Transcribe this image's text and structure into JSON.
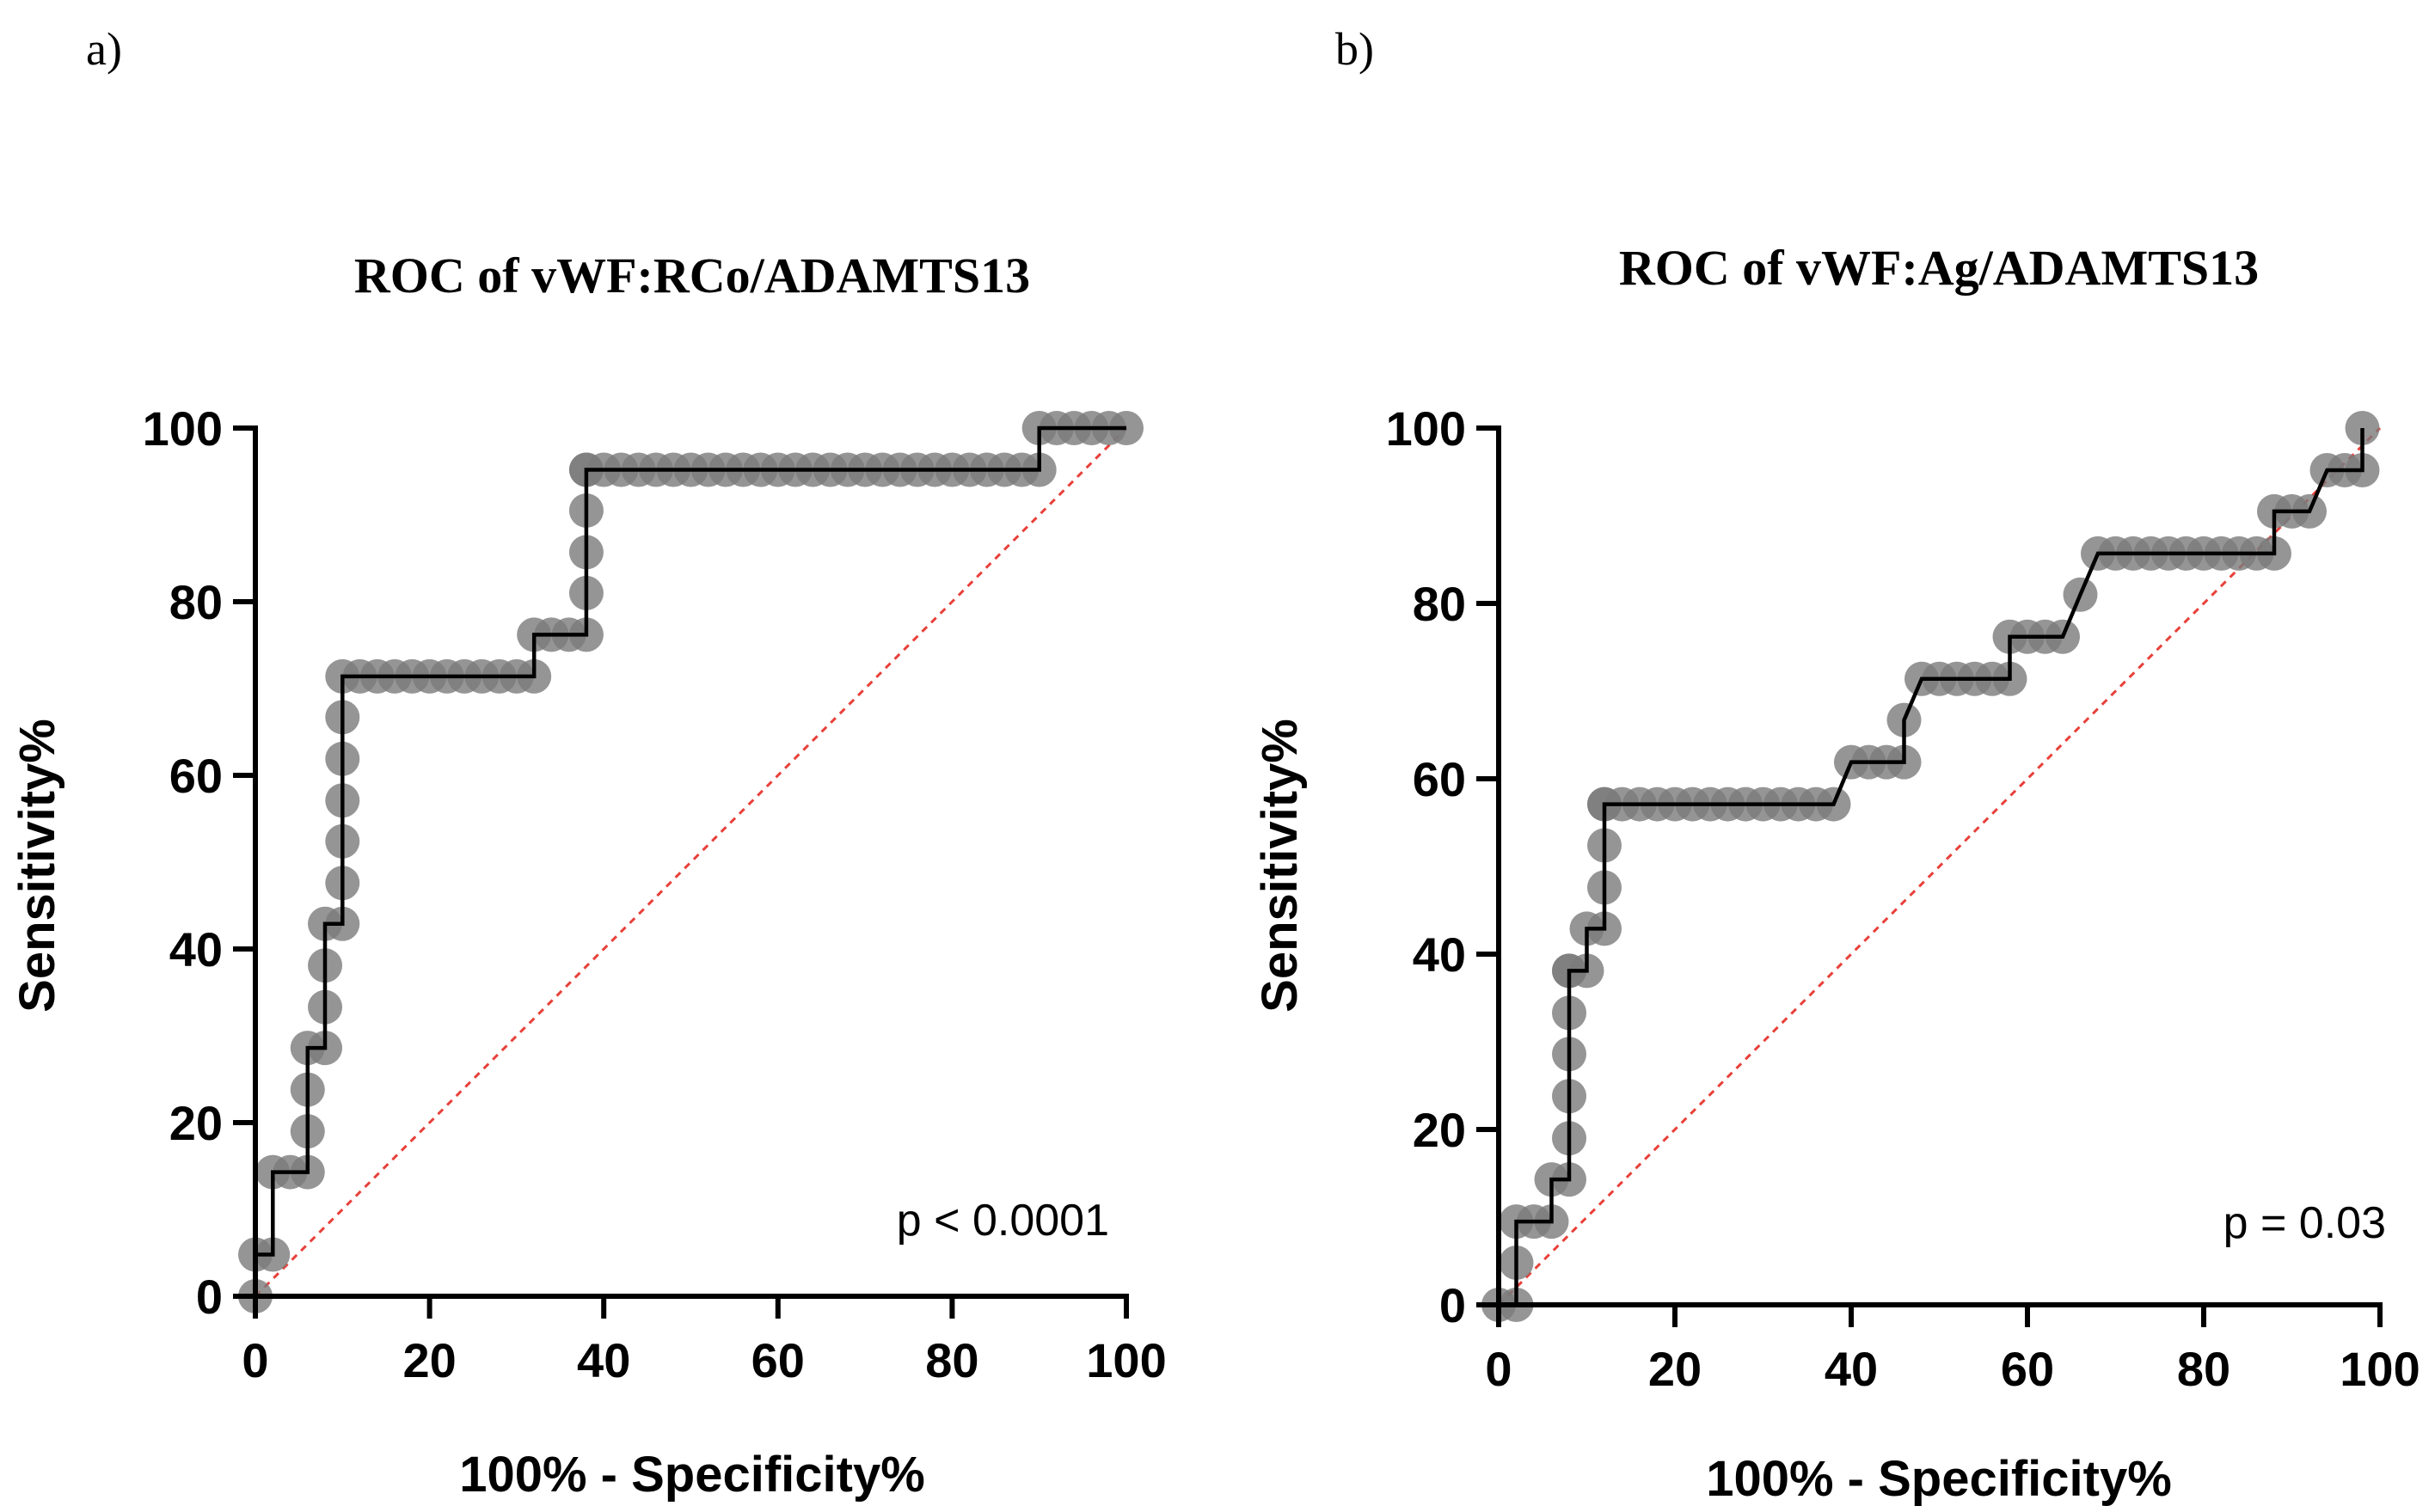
{
  "figure": {
    "panels": [
      {
        "panel_label": "a)",
        "annotation": "p < 0.0001",
        "chart_data": {
          "type": "line",
          "title": "ROC of vWF:RCo/ADAMTS13",
          "xlabel": "100% - Specificity%",
          "ylabel": "Sensitivity%",
          "xlim": [
            0,
            100
          ],
          "ylim": [
            0,
            100
          ],
          "xticks": [
            0,
            20,
            40,
            60,
            80,
            100
          ],
          "yticks": [
            0,
            20,
            40,
            60,
            80,
            100
          ],
          "colors": {
            "line": "#000000",
            "points": "#7a7a7a",
            "reference": "#e8403a"
          },
          "series": [
            {
              "name": "ROC curve",
              "x": [
                0,
                0,
                2,
                2,
                4,
                6,
                6,
                6,
                6,
                8,
                8,
                8,
                8,
                10,
                10,
                10,
                10,
                10,
                10,
                10,
                12,
                14,
                16,
                18,
                20,
                22,
                24,
                26,
                28,
                30,
                32,
                32,
                34,
                36,
                38,
                38,
                38,
                38,
                38,
                38,
                40,
                42,
                44,
                46,
                48,
                50,
                52,
                54,
                56,
                58,
                60,
                62,
                64,
                66,
                68,
                70,
                72,
                74,
                76,
                78,
                80,
                82,
                84,
                86,
                88,
                90,
                90,
                92,
                94,
                96,
                98,
                100
              ],
              "y": [
                0,
                4.8,
                4.8,
                14.3,
                14.3,
                14.3,
                19,
                23.8,
                28.6,
                28.6,
                33.3,
                38.1,
                42.9,
                42.9,
                47.6,
                52.4,
                57.1,
                61.9,
                66.7,
                71.4,
                71.4,
                71.4,
                71.4,
                71.4,
                71.4,
                71.4,
                71.4,
                71.4,
                71.4,
                71.4,
                71.4,
                76.2,
                76.2,
                76.2,
                76.2,
                81,
                85.7,
                90.5,
                95.2,
                95.2,
                95.2,
                95.2,
                95.2,
                95.2,
                95.2,
                95.2,
                95.2,
                95.2,
                95.2,
                95.2,
                95.2,
                95.2,
                95.2,
                95.2,
                95.2,
                95.2,
                95.2,
                95.2,
                95.2,
                95.2,
                95.2,
                95.2,
                95.2,
                95.2,
                95.2,
                95.2,
                100,
                100,
                100,
                100,
                100,
                100
              ]
            },
            {
              "name": "Reference line",
              "x": [
                0,
                100
              ],
              "y": [
                0,
                100
              ]
            }
          ]
        }
      },
      {
        "panel_label": "b)",
        "annotation": "p = 0.03",
        "chart_data": {
          "type": "line",
          "title": "ROC of vWF:Ag/ADAMTS13",
          "xlabel": "100% - Specificity%",
          "ylabel": "Sensitivity%",
          "xlim": [
            0,
            100
          ],
          "ylim": [
            0,
            100
          ],
          "xticks": [
            0,
            20,
            40,
            60,
            80,
            100
          ],
          "yticks": [
            0,
            20,
            40,
            60,
            80,
            100
          ],
          "colors": {
            "line": "#000000",
            "points": "#7a7a7a",
            "reference": "#e8403a"
          },
          "series": [
            {
              "name": "ROC curve",
              "x": [
                0,
                2,
                2,
                2,
                4,
                6,
                6,
                8,
                8,
                8,
                8,
                8,
                8,
                8,
                10,
                10,
                12,
                12,
                12,
                12,
                12,
                14,
                16,
                18,
                20,
                22,
                24,
                26,
                28,
                30,
                32,
                34,
                36,
                38,
                40,
                42,
                44,
                46,
                46,
                48,
                50,
                52,
                54,
                56,
                58,
                58,
                60,
                62,
                64,
                66,
                68,
                70,
                72,
                74,
                76,
                78,
                80,
                82,
                84,
                86,
                88,
                88,
                90,
                92,
                94,
                96,
                98,
                98
              ],
              "y": [
                0,
                0,
                4.8,
                9.5,
                9.5,
                9.5,
                14.3,
                14.3,
                19,
                23.8,
                28.6,
                33.3,
                38.1,
                38.1,
                38.1,
                42.9,
                42.9,
                47.6,
                52.4,
                57.1,
                57.1,
                57.1,
                57.1,
                57.1,
                57.1,
                57.1,
                57.1,
                57.1,
                57.1,
                57.1,
                57.1,
                57.1,
                57.1,
                57.1,
                61.9,
                61.9,
                61.9,
                61.9,
                66.7,
                71.4,
                71.4,
                71.4,
                71.4,
                71.4,
                71.4,
                76.2,
                76.2,
                76.2,
                76.2,
                81,
                85.7,
                85.7,
                85.7,
                85.7,
                85.7,
                85.7,
                85.7,
                85.7,
                85.7,
                85.7,
                85.7,
                90.5,
                90.5,
                90.5,
                95.2,
                95.2,
                95.2,
                100
              ]
            },
            {
              "name": "Reference line",
              "x": [
                0,
                100
              ],
              "y": [
                0,
                100
              ]
            }
          ]
        }
      }
    ]
  }
}
